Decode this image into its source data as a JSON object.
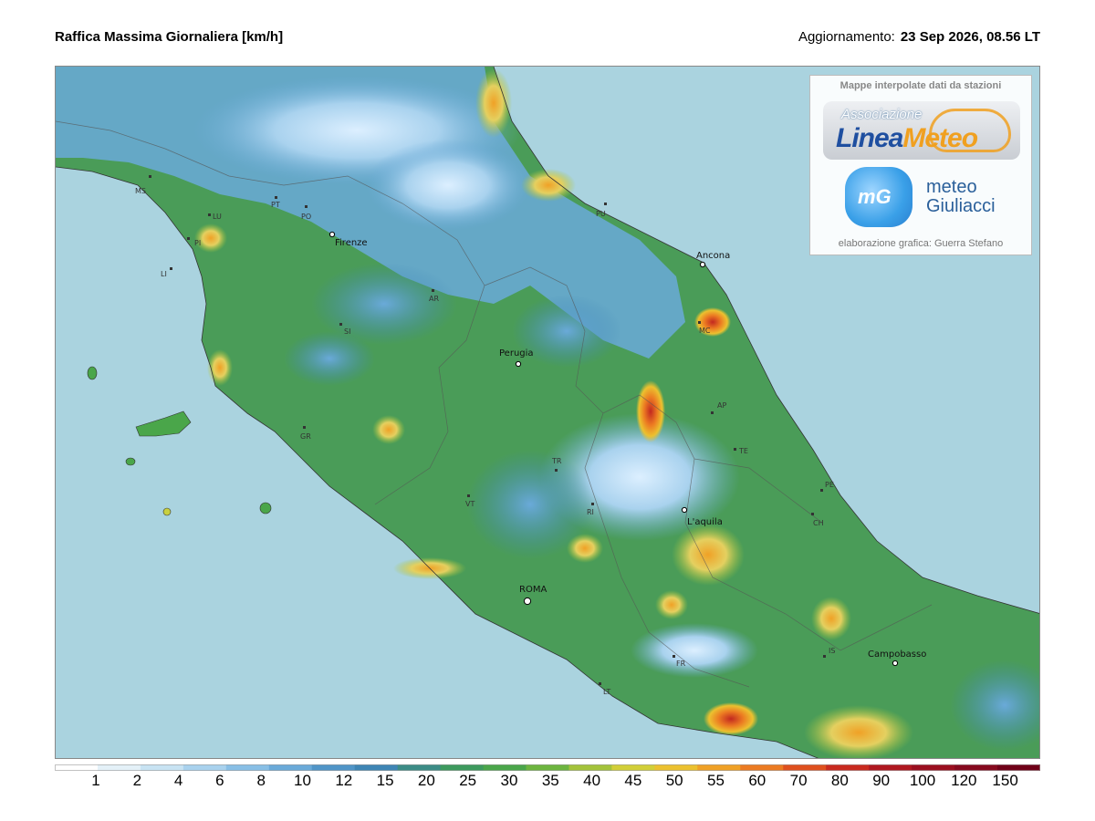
{
  "header": {
    "title": "Raffica Massima Giornaliera [km/h]",
    "update_label": "Aggiornamento:",
    "update_value": "23 Sep 2026, 08.56 LT"
  },
  "credits": {
    "heading": "Mappe interpolate dati da stazioni",
    "logo1_top": "Associazione",
    "logo1_main_a": "Linea",
    "logo1_main_b": "Meteo",
    "logo2_mark": "mG",
    "logo2_line1": "meteo",
    "logo2_line2": "Giuliacci",
    "footer": "elaborazione grafica: Guerra Stefano"
  },
  "map": {
    "cities": [
      "Firenze",
      "Ancona",
      "Perugia",
      "L'aquila",
      "ROMA",
      "Campobasso"
    ],
    "provinces": [
      "MS",
      "LU",
      "PI",
      "LI",
      "PT",
      "PO",
      "AR",
      "SI",
      "GR",
      "PU",
      "MC",
      "AP",
      "TE",
      "TR",
      "VT",
      "RI",
      "PE",
      "CH",
      "IS",
      "FR",
      "LT"
    ]
  },
  "legend": {
    "labels": [
      "1",
      "2",
      "4",
      "6",
      "8",
      "10",
      "12",
      "15",
      "20",
      "25",
      "30",
      "35",
      "40",
      "45",
      "50",
      "55",
      "60",
      "70",
      "80",
      "90",
      "100",
      "120",
      "150"
    ],
    "colors": [
      "#ffffff",
      "#e4f1f8",
      "#c8e3f3",
      "#a9d2ee",
      "#88bfe6",
      "#6aaad9",
      "#5095c8",
      "#3e85b5",
      "#3b8c86",
      "#3d9a5e",
      "#4aa64a",
      "#6db53f",
      "#a4c33a",
      "#d2cf38",
      "#ecc12f",
      "#f0a126",
      "#ec7b22",
      "#df501e",
      "#c92a1f",
      "#b01820",
      "#9b0f1f",
      "#860a1e",
      "#700018"
    ]
  }
}
